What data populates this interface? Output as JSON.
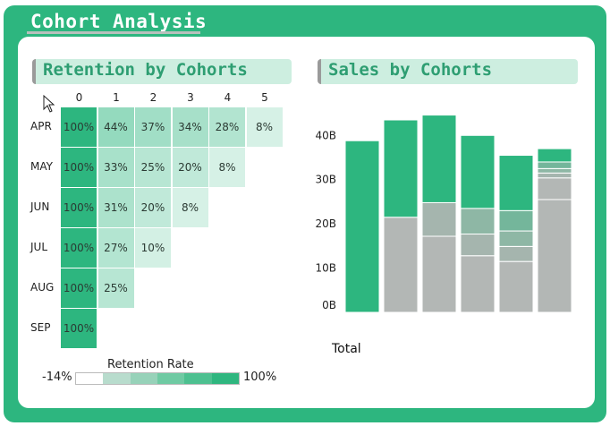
{
  "app_title": "Cohort Analysis",
  "panels": {
    "retention_title": "Retention by Cohorts",
    "sales_title": "Sales by Cohorts"
  },
  "colors": {
    "frame": "#2db67f",
    "header_bg": "#cdeee0",
    "header_text": "#2e9e72"
  },
  "chart_data": [
    {
      "type": "heatmap",
      "title": "Retention by Cohorts",
      "x": [
        "0",
        "1",
        "2",
        "3",
        "4",
        "5"
      ],
      "y": [
        "APR",
        "MAY",
        "JUN",
        "JUL",
        "AUG",
        "SEP"
      ],
      "values": [
        [
          100,
          44,
          37,
          34,
          28,
          8
        ],
        [
          100,
          33,
          25,
          20,
          8
        ],
        [
          100,
          31,
          20,
          8
        ],
        [
          100,
          27,
          10
        ],
        [
          100,
          25
        ],
        [
          100
        ]
      ],
      "cell_labels": [
        [
          "100%",
          "44%",
          "37%",
          "34%",
          "28%",
          "8%"
        ],
        [
          "100%",
          "33%",
          "25%",
          "20%",
          "8%"
        ],
        [
          "100%",
          "31%",
          "20%",
          "8%"
        ],
        [
          "100%",
          "27%",
          "10%"
        ],
        [
          "100%",
          "25%"
        ],
        [
          "100%"
        ]
      ],
      "legend": {
        "title": "Retention Rate",
        "min_label": "-14%",
        "max_label": "100%",
        "min": -14,
        "max": 100
      }
    },
    {
      "type": "bar",
      "stacked": true,
      "title": "Sales by Cohorts",
      "xlabel": "Total",
      "ylim": [
        0,
        44
      ],
      "yticks": [
        "0B",
        "10B",
        "20B",
        "30B",
        "40B"
      ],
      "ytick_values": [
        0,
        10,
        20,
        30,
        40
      ],
      "bars": [
        {
          "segments": [
            38.8
          ]
        },
        {
          "segments": [
            21.5,
            22.0
          ]
        },
        {
          "segments": [
            17.2,
            7.6,
            19.8
          ]
        },
        {
          "segments": [
            12.8,
            4.9,
            5.8,
            16.5
          ]
        },
        {
          "segments": [
            11.5,
            3.4,
            3.5,
            4.6,
            12.5
          ]
        },
        {
          "segments": [
            25.5,
            4.9,
            1.1,
            1.0,
            1.5,
            3.0
          ]
        }
      ],
      "segment_colors": [
        "#2db67f",
        "#37d597",
        "#74b69b",
        "#8eb7a5",
        "#a5b5ae",
        "#b3b7b5"
      ],
      "gray_color": "#b3b7b5"
    }
  ]
}
